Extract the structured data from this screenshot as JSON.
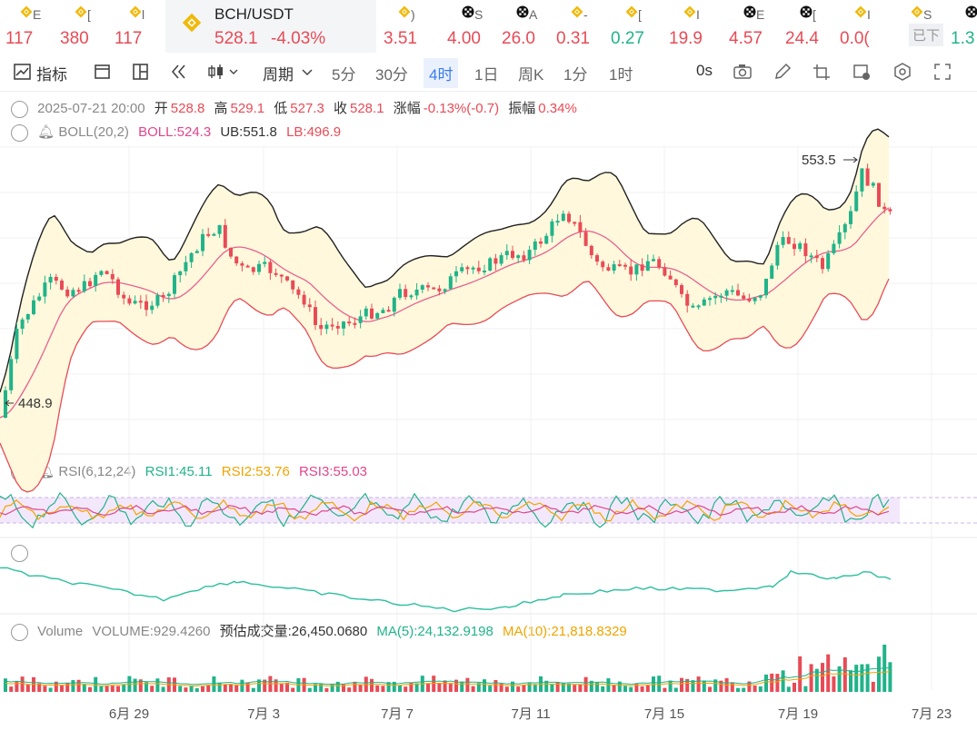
{
  "ticker": [
    {
      "name": "E",
      "price": "117",
      "icon": "bnb-icon",
      "dir": "down"
    },
    {
      "name": "[",
      "price": "380",
      "icon": "bnb-icon",
      "dir": "down"
    },
    {
      "name": "l",
      "price": "117",
      "icon": "bnb-icon",
      "dir": "down"
    },
    {
      "name": "BCH/USDT",
      "price": "528.1",
      "change": "-4.03%",
      "icon": "bnb-icon",
      "dir": "down",
      "selected": true
    },
    {
      "name": ")",
      "price": "3.51",
      "icon": "bnb-icon",
      "dir": "down"
    },
    {
      "name": "S",
      "price": "4.00",
      "icon": "okx-icon",
      "dir": "down"
    },
    {
      "name": "A",
      "price": "26.0",
      "icon": "okx-icon",
      "dir": "down"
    },
    {
      "name": "-",
      "price": "0.31",
      "icon": "bnb-icon",
      "dir": "down"
    },
    {
      "name": "[",
      "price": "0.27",
      "icon": "bnb-icon",
      "dir": "up"
    },
    {
      "name": "I",
      "price": "19.9",
      "icon": "bnb-icon",
      "dir": "down"
    },
    {
      "name": "E",
      "price": "4.57",
      "icon": "okx-icon",
      "dir": "down"
    },
    {
      "name": "[",
      "price": "24.4",
      "icon": "okx-icon",
      "dir": "down"
    },
    {
      "name": "I",
      "price": "0.0(",
      "icon": "bnb-icon",
      "dir": "down"
    },
    {
      "name": "S",
      "price": "",
      "icon": "bnb-icon",
      "dir": "down",
      "extra": "已下"
    },
    {
      "name": "I",
      "price": "1.3",
      "icon": "okx-icon",
      "dir": "up"
    }
  ],
  "toolbar": {
    "indicator_label": "指标",
    "period_label": "周期",
    "intervals": [
      "5分",
      "30分",
      "4时",
      "1日",
      "周K",
      "1分",
      "1时"
    ],
    "active_interval": "4时",
    "countdown": "0s"
  },
  "ohlc": {
    "datetime": "2025-07-21 20:00",
    "open_label": "开",
    "open": "528.8",
    "high_label": "高",
    "high": "529.1",
    "low_label": "低",
    "low": "527.3",
    "close_label": "收",
    "close": "528.1",
    "change_label": "涨幅",
    "change": "-0.13%(-0.7)",
    "amplitude_label": "振幅",
    "amplitude": "0.34%"
  },
  "boll": {
    "label": "BOLL(20,2)",
    "mid": "BOLL:524.3",
    "ub": "UB:551.8",
    "lb": "LB:496.9"
  },
  "rsi": {
    "label": "RSI(6,12,24)",
    "rsi1": "RSI1:45.11",
    "rsi2": "RSI2:53.76",
    "rsi3": "RSI3:55.03"
  },
  "volume": {
    "label": "Volume",
    "vol": "VOLUME:929.4260",
    "est": "预估成交量:26,450.0680",
    "ma5": "MA(5):24,132.9198",
    "ma10": "MA(10):21,818.8329"
  },
  "price_markers": {
    "high": "553.5",
    "low": "448.9"
  },
  "date_axis": [
    "6月 29",
    "7月 3",
    "7月 7",
    "7月 11",
    "7月 15",
    "7月 19",
    "7月 23"
  ],
  "colors": {
    "up": "#21b38a",
    "down": "#e84b56",
    "accent": "#3a7cf0",
    "boll_fill": "#fff8dc",
    "rsi_band": "#f3e8fb"
  }
}
